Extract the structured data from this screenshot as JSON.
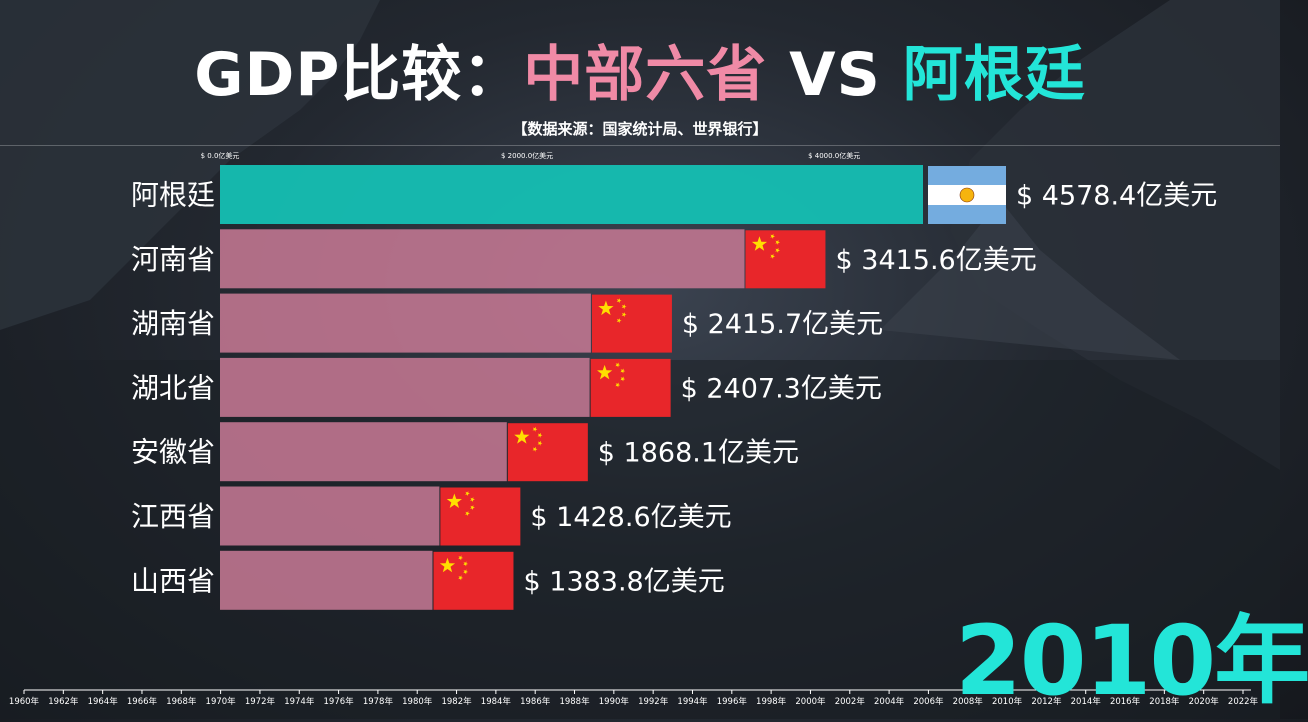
{
  "title": {
    "prefix": "GDP比较：",
    "group": "中部六省",
    "vs": " VS ",
    "country": "阿根廷"
  },
  "subtitle": "【数据来源：国家统计局、世界银行】",
  "current_year": "2010年",
  "colors": {
    "province_bar": "#c07590",
    "country_bar": "#15bfb3",
    "title_pink": "#f08aa6",
    "title_cyan": "#23e5d8"
  },
  "chart_data": {
    "type": "bar",
    "orientation": "horizontal",
    "unit": "亿美元",
    "xlim": [
      0,
      5400
    ],
    "axis_ticks": [
      {
        "value": 0,
        "label": "$ 0.0亿美元"
      },
      {
        "value": 2000,
        "label": "$ 2000.0亿美元"
      },
      {
        "value": 4000,
        "label": "$ 4000.0亿美元"
      }
    ],
    "bars": [
      {
        "name": "阿根廷",
        "value": 4578.4,
        "label": "$ 4578.4亿美元",
        "flag": "argentina-flag",
        "kind": "country"
      },
      {
        "name": "河南省",
        "value": 3415.6,
        "label": "$ 3415.6亿美元",
        "flag": "china-flag",
        "kind": "province"
      },
      {
        "name": "湖南省",
        "value": 2415.7,
        "label": "$ 2415.7亿美元",
        "flag": "china-flag",
        "kind": "province"
      },
      {
        "name": "湖北省",
        "value": 2407.3,
        "label": "$ 2407.3亿美元",
        "flag": "china-flag",
        "kind": "province"
      },
      {
        "name": "安徽省",
        "value": 1868.1,
        "label": "$ 1868.1亿美元",
        "flag": "china-flag",
        "kind": "province"
      },
      {
        "name": "江西省",
        "value": 1428.6,
        "label": "$ 1428.6亿美元",
        "flag": "china-flag",
        "kind": "province"
      },
      {
        "name": "山西省",
        "value": 1383.8,
        "label": "$ 1383.8亿美元",
        "flag": "china-flag",
        "kind": "province"
      }
    ],
    "timeline": {
      "labels": [
        "1960年",
        "1962年",
        "1964年",
        "1966年",
        "1968年",
        "1970年",
        "1972年",
        "1974年",
        "1976年",
        "1978年",
        "1980年",
        "1982年",
        "1984年",
        "1986年",
        "1988年",
        "1990年",
        "1992年",
        "1994年",
        "1996年",
        "1998年",
        "2000年",
        "2002年",
        "2004年",
        "2006年",
        "2008年",
        "2010年",
        "2012年",
        "2014年",
        "2016年",
        "2018年",
        "2020年",
        "2022年"
      ],
      "current": "2010年"
    }
  }
}
